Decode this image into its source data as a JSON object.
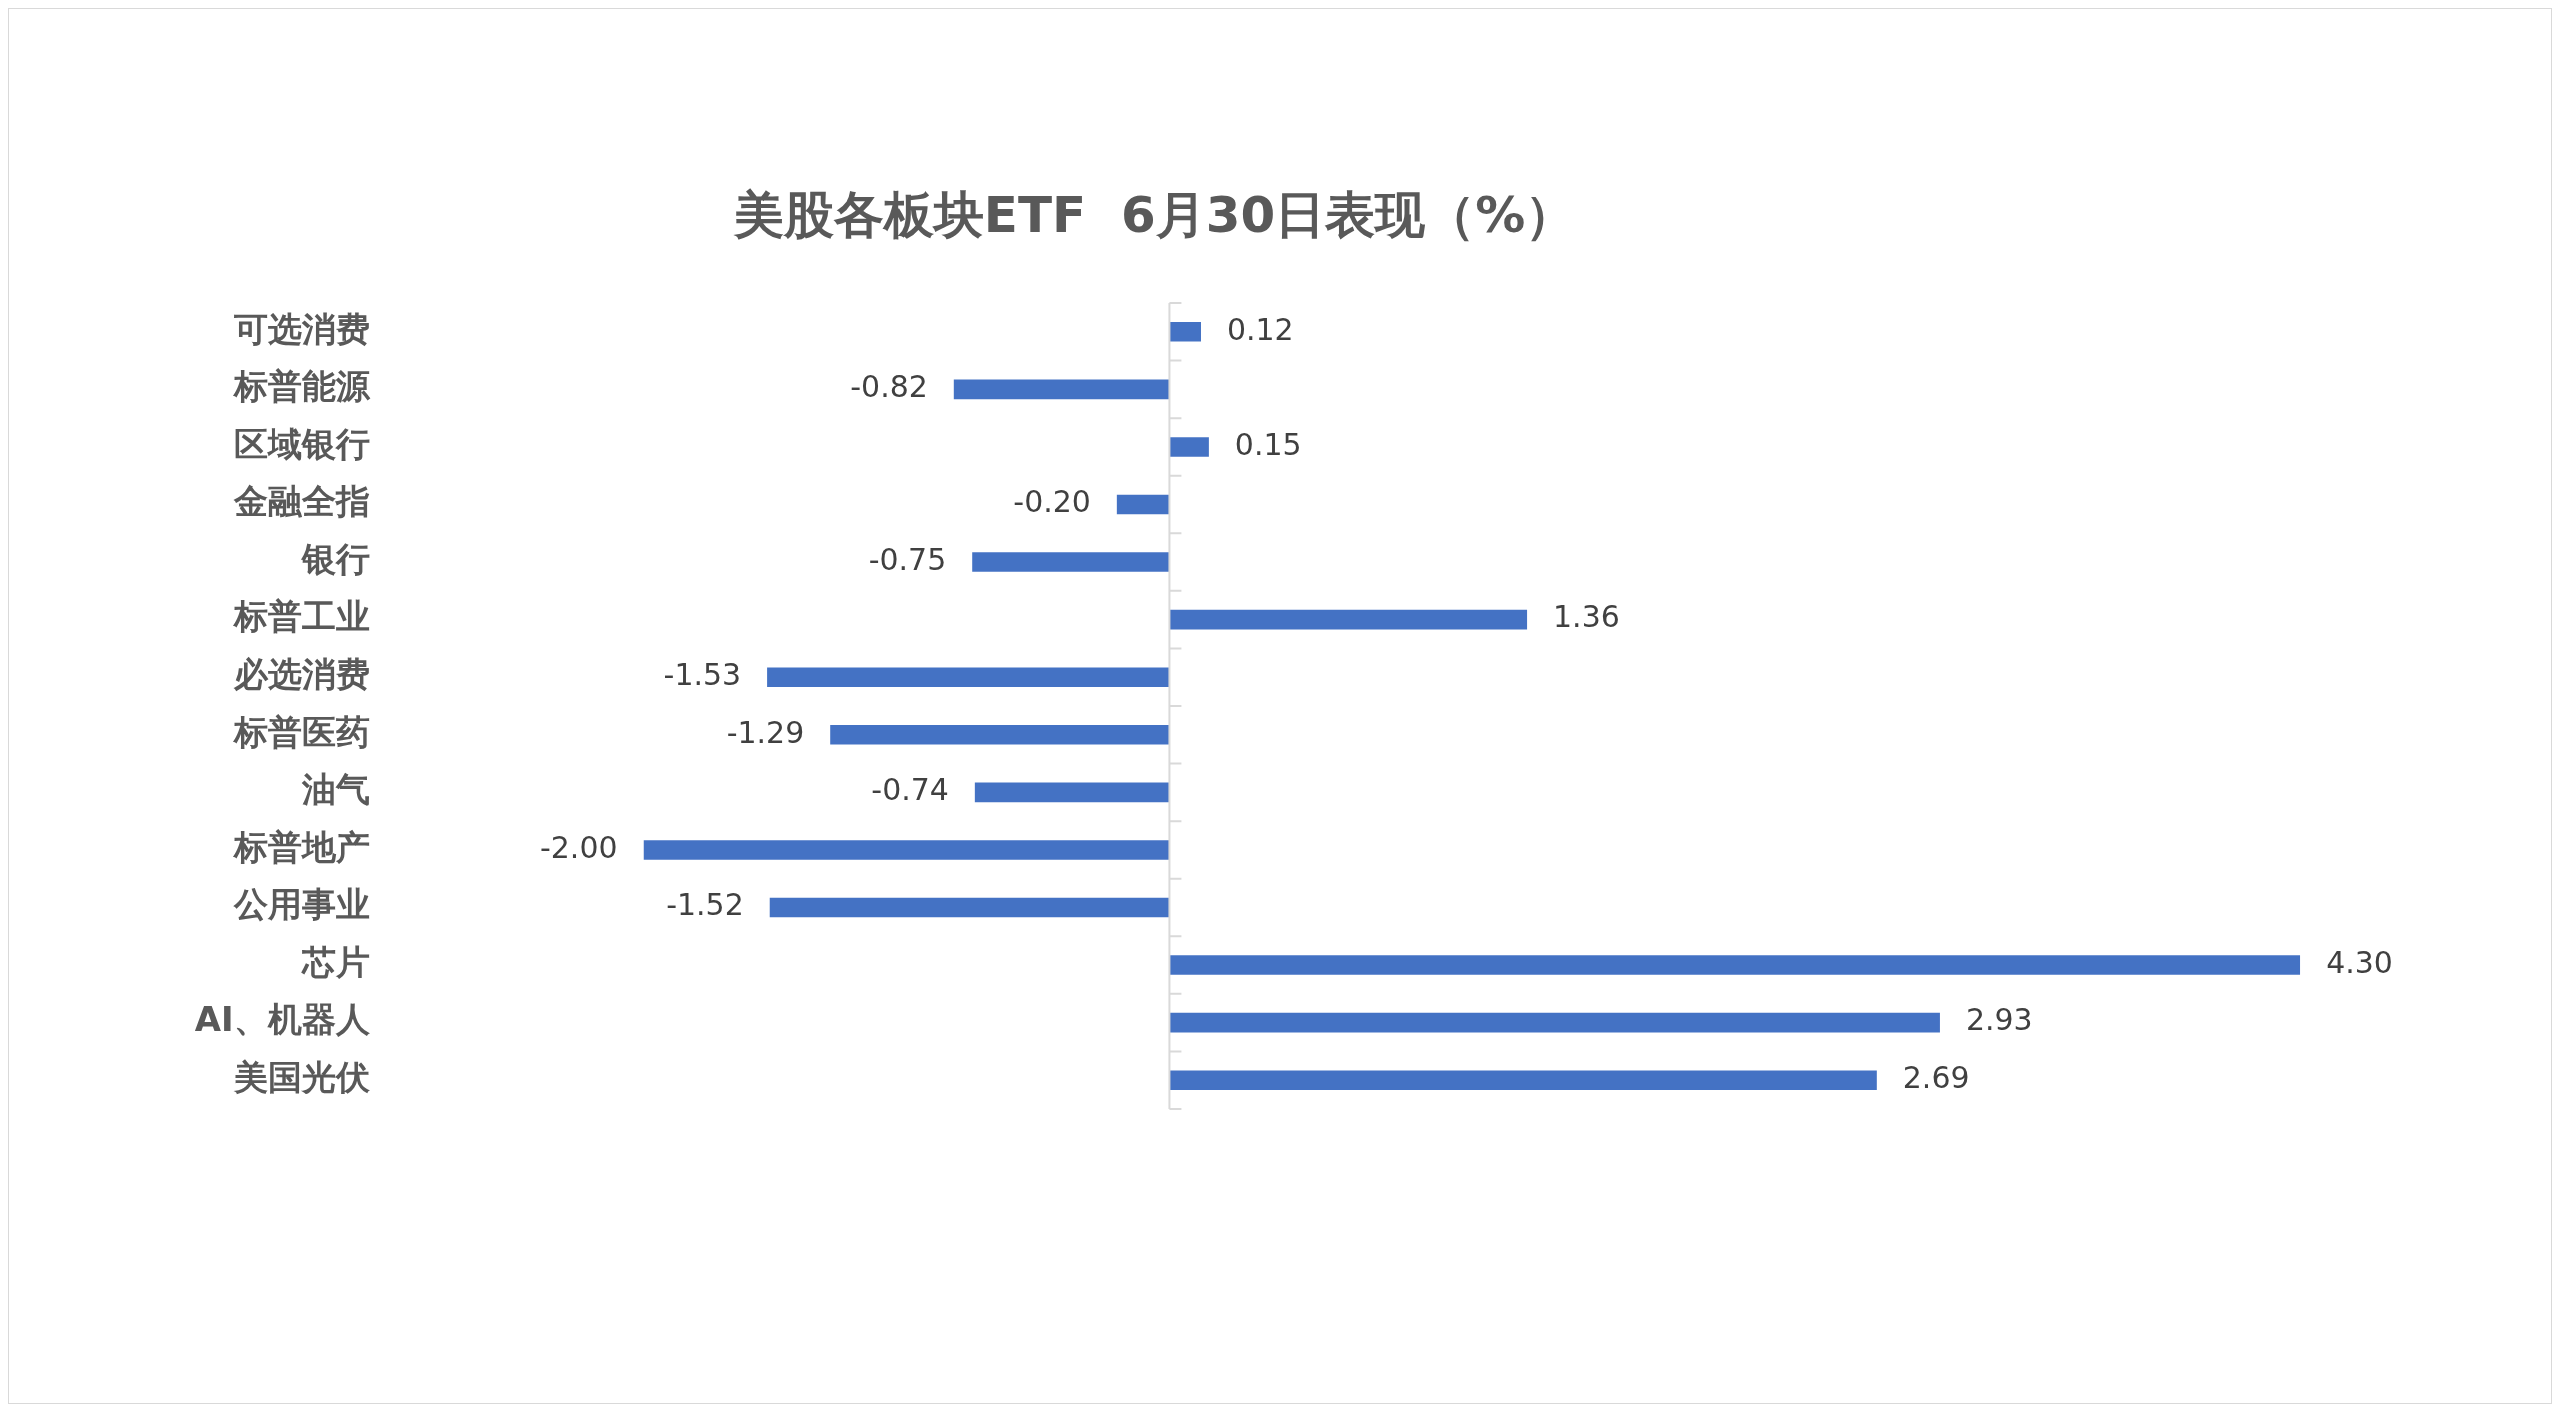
{
  "chart_data": {
    "type": "bar",
    "orientation": "horizontal",
    "title": "美股各板块ETF  6月30日表现（%）",
    "categories": [
      "可选消费",
      "标普能源",
      "区域银行",
      "金融全指",
      "银行",
      "标普工业",
      "必选消费",
      "标普医药",
      "油气",
      "标普地产",
      "公用事业",
      "芯片",
      "AI、机器人",
      "美国光伏"
    ],
    "values": [
      0.12,
      -0.82,
      0.15,
      -0.2,
      -0.75,
      1.36,
      -1.53,
      -1.29,
      -0.74,
      -2.0,
      -1.52,
      4.3,
      2.93,
      2.69
    ],
    "value_labels": [
      "0.12",
      "-0.82",
      "0.15",
      "-0.20",
      "-0.75",
      "1.36",
      "-1.53",
      "-1.29",
      "-0.74",
      "-2.00",
      "-1.52",
      "4.30",
      "2.93",
      "2.69"
    ],
    "color": "#4472c4",
    "tick_labels": "y",
    "legend": false,
    "grid": false
  }
}
